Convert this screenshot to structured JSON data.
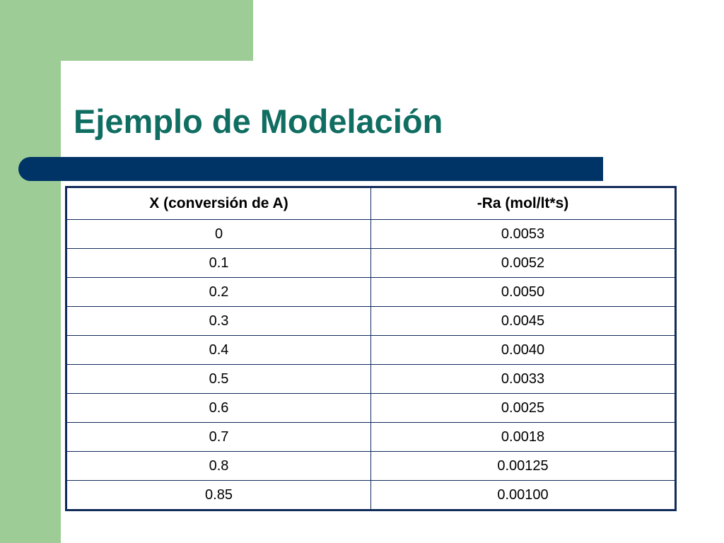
{
  "slide": {
    "title": "Ejemplo de Modelación"
  },
  "table": {
    "headers": [
      "X (conversión de A)",
      "-Ra (mol/lt*s)"
    ],
    "rows": [
      [
        "0",
        "0.0053"
      ],
      [
        "0.1",
        "0.0052"
      ],
      [
        "0.2",
        "0.0050"
      ],
      [
        "0.3",
        "0.0045"
      ],
      [
        "0.4",
        "0.0040"
      ],
      [
        "0.5",
        "0.0033"
      ],
      [
        "0.6",
        "0.0025"
      ],
      [
        "0.7",
        "0.0018"
      ],
      [
        "0.8",
        "0.00125"
      ],
      [
        "0.85",
        "0.00100"
      ]
    ]
  },
  "colors": {
    "title": "#0f6d61",
    "sidebar_green": "#9dcc96",
    "rule_navy": "#003466",
    "table_border": "#102a5a"
  }
}
